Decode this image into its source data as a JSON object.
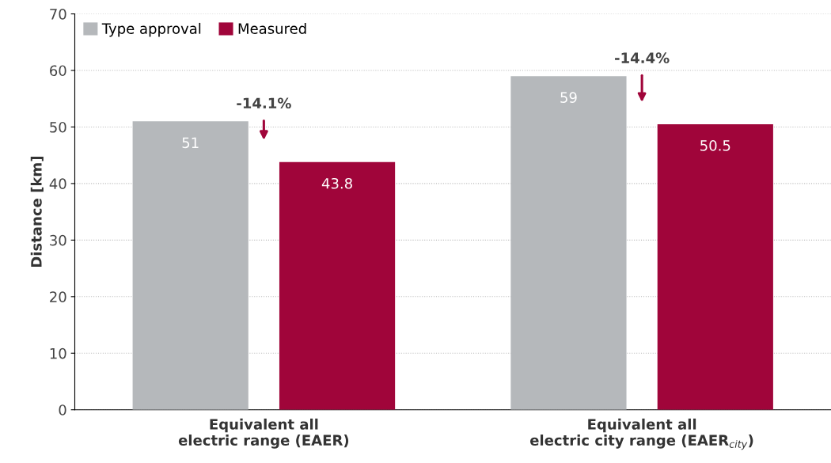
{
  "chart_data": {
    "type": "bar",
    "ylabel": "Distance [km]",
    "categories": [
      "Equivalent all\nelectric range (EAER)",
      "Equivalent all\nelectric city range (EAER$_{city}$)"
    ],
    "series": [
      {
        "name": "Type approval",
        "color": "#b5b8bb",
        "values": [
          51,
          59
        ]
      },
      {
        "name": "Measured",
        "color": "#a0053a",
        "values": [
          43.8,
          50.5
        ]
      }
    ],
    "ylim": [
      0,
      70
    ],
    "yticks": [
      0,
      10,
      20,
      30,
      40,
      50,
      60,
      70
    ],
    "grid": "y",
    "legend": "top left",
    "data_labels": true,
    "annotations": [
      "-14.1%",
      "-14.4%"
    ]
  }
}
